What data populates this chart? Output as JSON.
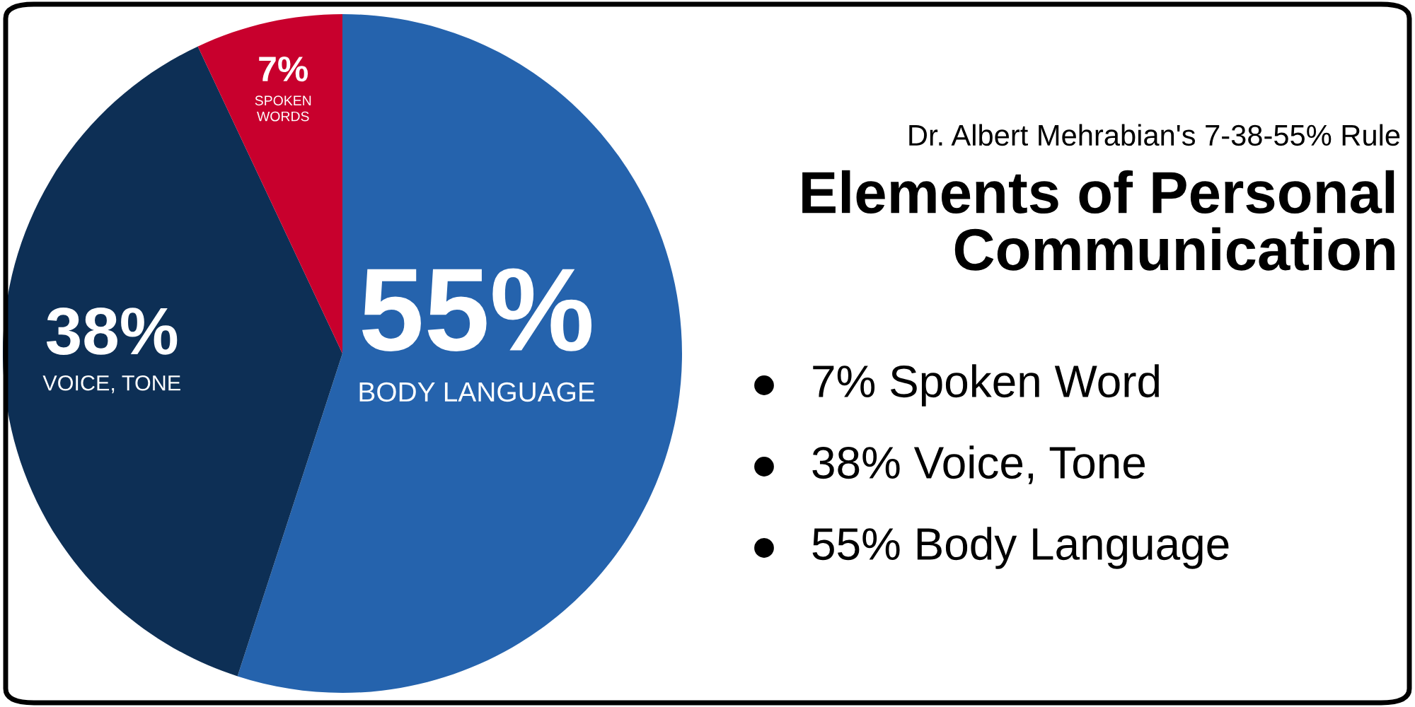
{
  "chart_data": {
    "type": "pie",
    "title": "Elements of Personal\nCommunication",
    "subtitle": "Dr. Albert Mehrabian's 7-38-55% Rule",
    "categories": [
      "BODY LANGUAGE",
      "VOICE, TONE",
      "SPOKEN\nWORDS"
    ],
    "values": [
      55,
      38,
      7
    ],
    "colors": [
      "#2563ad",
      "#0d2f55",
      "#c8002d"
    ],
    "value_labels": [
      "55%",
      "38%",
      "7%"
    ],
    "annotations": [
      "7% Spoken Word",
      "38% Voice, Tone",
      "55% Body Language"
    ],
    "legend": false
  }
}
